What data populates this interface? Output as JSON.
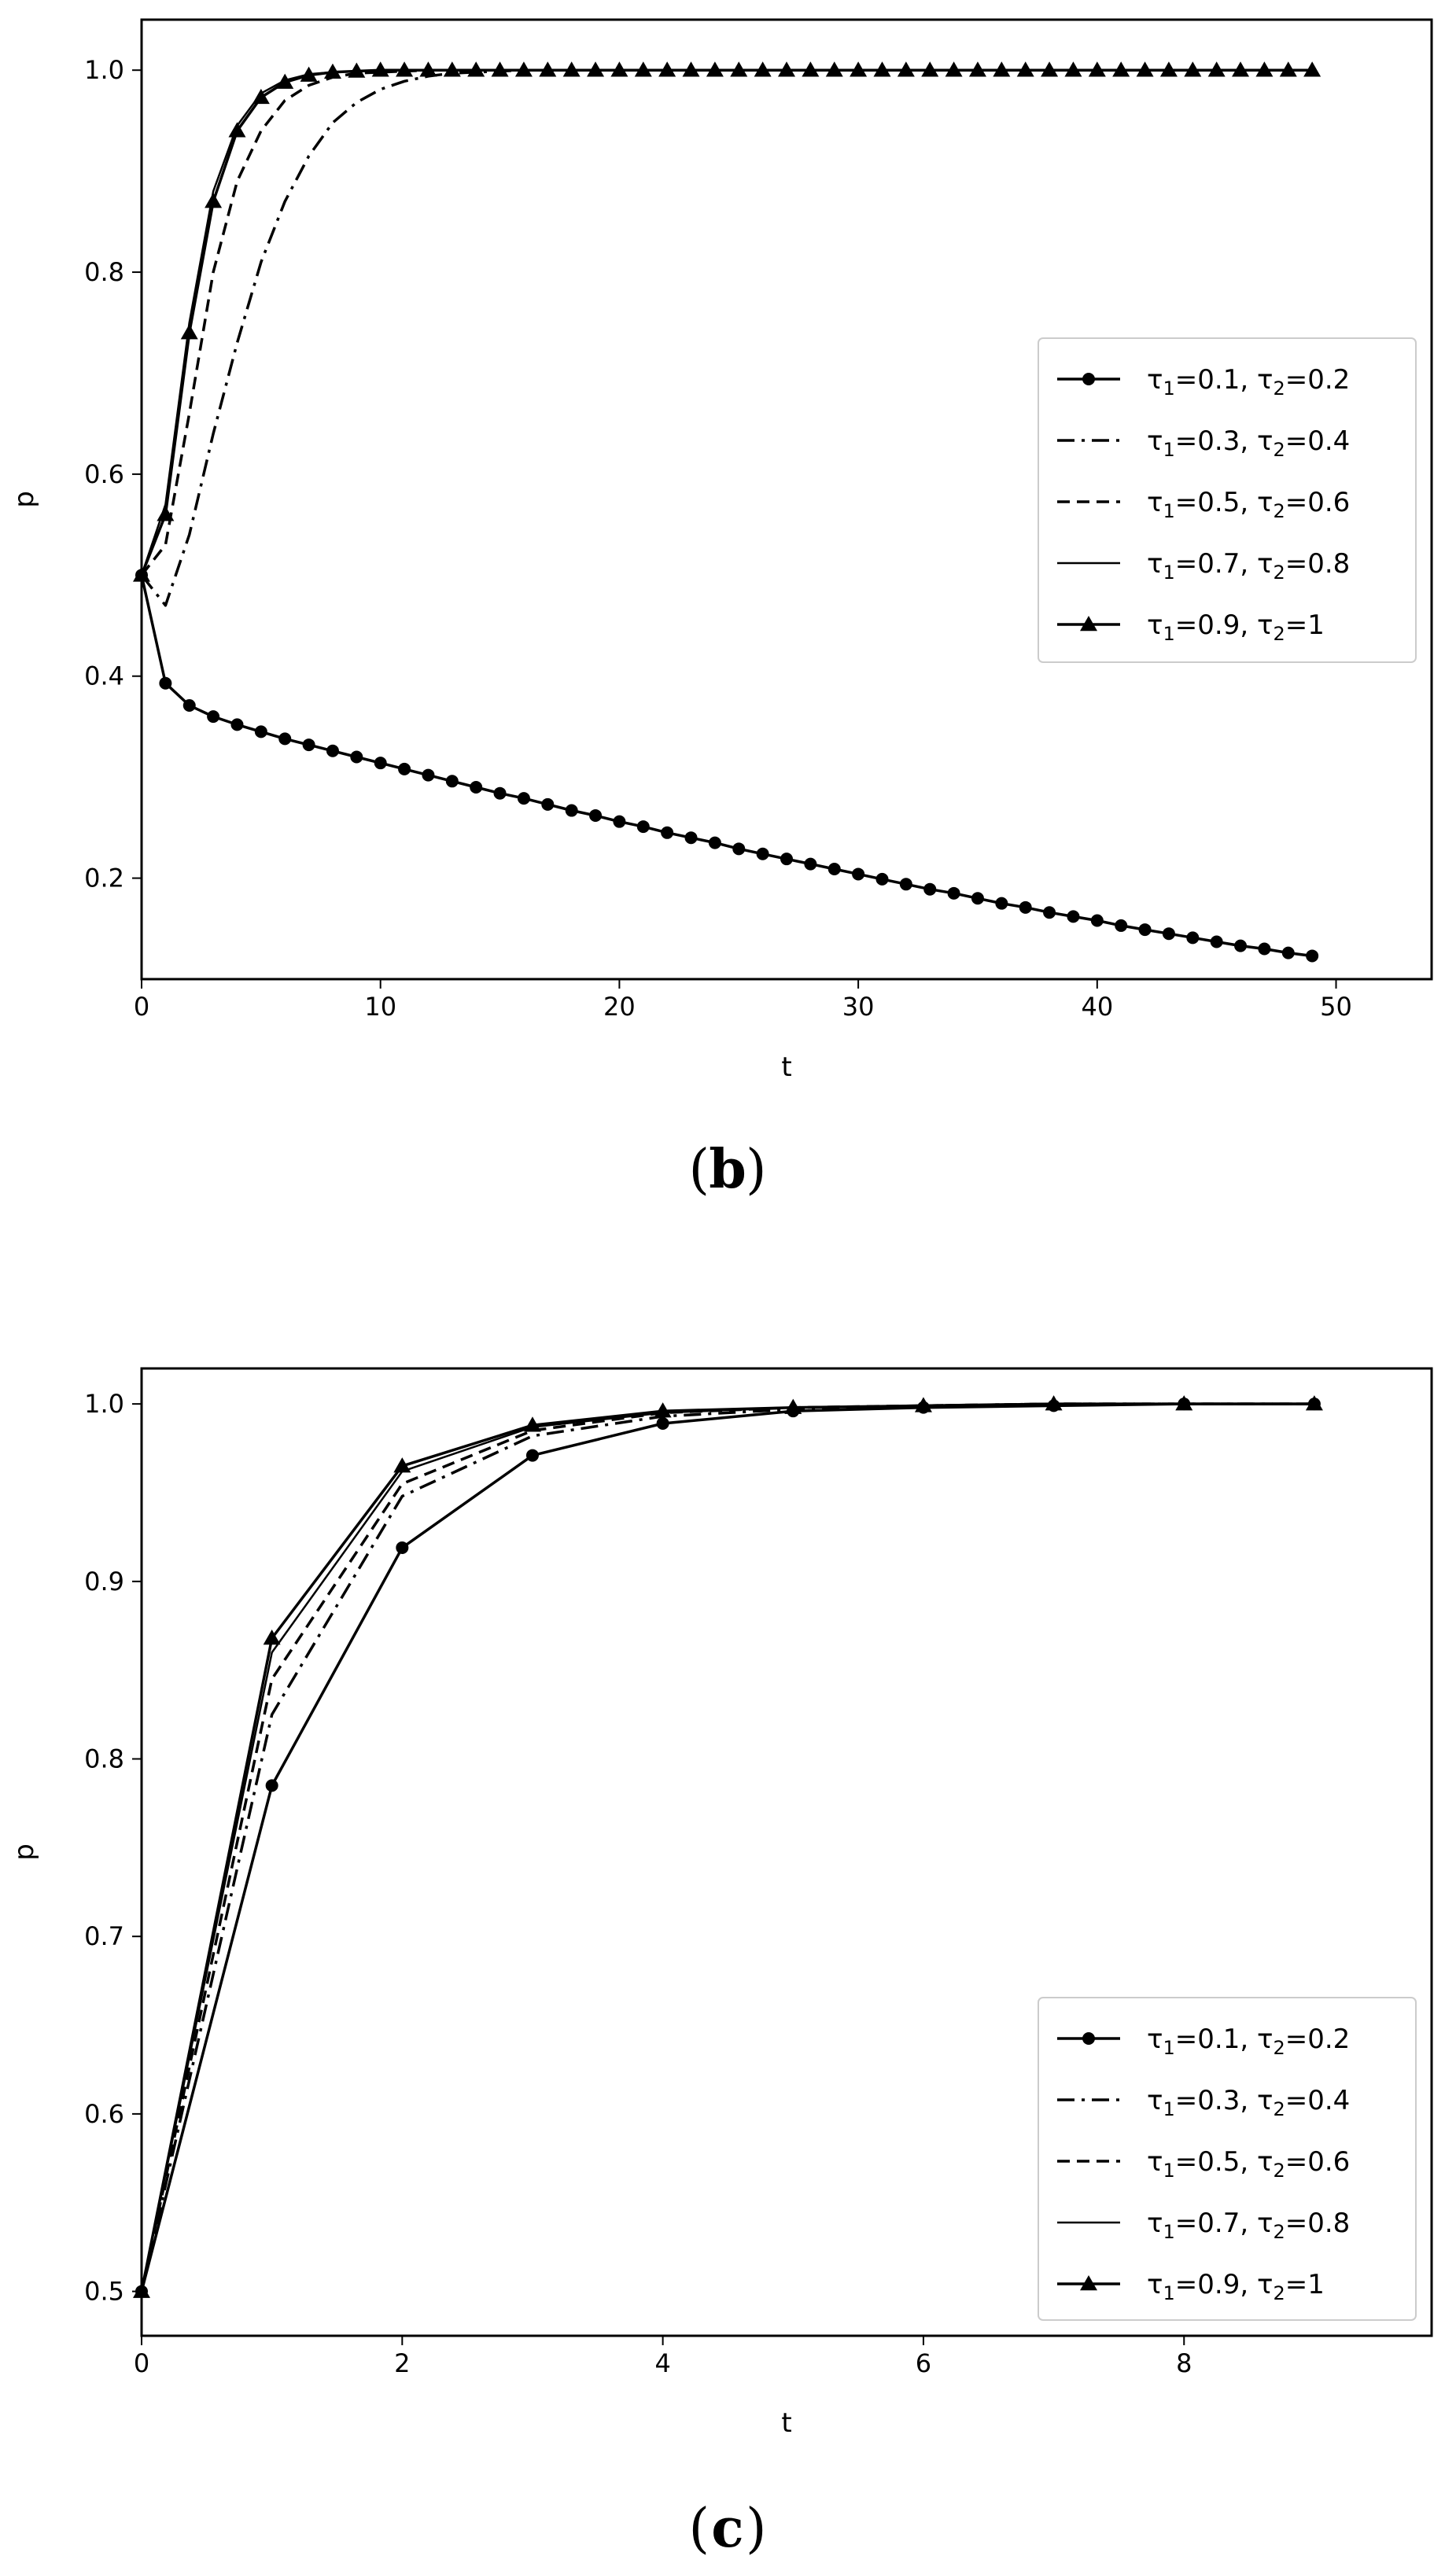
{
  "chart_data": [
    {
      "type": "line",
      "caption": "b",
      "xlabel": "t",
      "ylabel": "p",
      "xlim": [
        0,
        54
      ],
      "ylim": [
        0.1,
        1.05
      ],
      "xticks": [
        0,
        10,
        20,
        30,
        40,
        50
      ],
      "yticks": [
        0.2,
        0.4,
        0.6,
        0.8,
        1.0
      ],
      "xtick_labels": [
        "0",
        "10",
        "20",
        "30",
        "40",
        "50"
      ],
      "ytick_labels": [
        "0.2",
        "0.4",
        "0.6",
        "0.8",
        "1.0"
      ],
      "grid": false,
      "legend_position": "center-right",
      "x": [
        0,
        1,
        2,
        3,
        4,
        5,
        6,
        7,
        8,
        9,
        10,
        11,
        12,
        13,
        14,
        15,
        16,
        17,
        18,
        19,
        20,
        21,
        22,
        23,
        24,
        25,
        26,
        27,
        28,
        29,
        30,
        31,
        32,
        33,
        34,
        35,
        36,
        37,
        38,
        39,
        40,
        41,
        42,
        43,
        44,
        45,
        46,
        47,
        48,
        49
      ],
      "series": [
        {
          "legend": {
            "tau1": "0.1",
            "tau2": "0.2"
          },
          "style": "solid-circle",
          "values": [
            0.5,
            0.393,
            0.371,
            0.36,
            0.352,
            0.345,
            0.338,
            0.332,
            0.326,
            0.32,
            0.314,
            0.308,
            0.302,
            0.296,
            0.29,
            0.284,
            0.279,
            0.273,
            0.267,
            0.262,
            0.256,
            0.251,
            0.245,
            0.24,
            0.235,
            0.229,
            0.224,
            0.219,
            0.214,
            0.209,
            0.204,
            0.199,
            0.194,
            0.189,
            0.185,
            0.18,
            0.175,
            0.171,
            0.166,
            0.162,
            0.158,
            0.153,
            0.149,
            0.145,
            0.141,
            0.137,
            0.133,
            0.13,
            0.126,
            0.123
          ]
        },
        {
          "legend": {
            "tau1": "0.3",
            "tau2": "0.4"
          },
          "style": "dashdot",
          "values": [
            0.5,
            0.47,
            0.54,
            0.64,
            0.73,
            0.81,
            0.87,
            0.915,
            0.948,
            0.968,
            0.981,
            0.989,
            0.994,
            0.997,
            0.998,
            0.999,
            1.0,
            1.0,
            1.0,
            1.0,
            1.0,
            1.0,
            1.0,
            1.0,
            1.0,
            1.0,
            1.0,
            1.0,
            1.0,
            1.0,
            1.0,
            1.0,
            1.0,
            1.0,
            1.0,
            1.0,
            1.0,
            1.0,
            1.0,
            1.0,
            1.0,
            1.0,
            1.0,
            1.0,
            1.0,
            1.0,
            1.0,
            1.0,
            1.0,
            1.0
          ]
        },
        {
          "legend": {
            "tau1": "0.5",
            "tau2": "0.6"
          },
          "style": "dashed",
          "values": [
            0.5,
            0.53,
            0.66,
            0.8,
            0.89,
            0.94,
            0.97,
            0.985,
            0.993,
            0.997,
            0.998,
            0.999,
            1.0,
            1.0,
            1.0,
            1.0,
            1.0,
            1.0,
            1.0,
            1.0,
            1.0,
            1.0,
            1.0,
            1.0,
            1.0,
            1.0,
            1.0,
            1.0,
            1.0,
            1.0,
            1.0,
            1.0,
            1.0,
            1.0,
            1.0,
            1.0,
            1.0,
            1.0,
            1.0,
            1.0,
            1.0,
            1.0,
            1.0,
            1.0,
            1.0,
            1.0,
            1.0,
            1.0,
            1.0,
            1.0
          ]
        },
        {
          "legend": {
            "tau1": "0.7",
            "tau2": "0.8"
          },
          "style": "solid",
          "values": [
            0.5,
            0.57,
            0.75,
            0.88,
            0.945,
            0.977,
            0.99,
            0.996,
            0.998,
            0.999,
            1.0,
            1.0,
            1.0,
            1.0,
            1.0,
            1.0,
            1.0,
            1.0,
            1.0,
            1.0,
            1.0,
            1.0,
            1.0,
            1.0,
            1.0,
            1.0,
            1.0,
            1.0,
            1.0,
            1.0,
            1.0,
            1.0,
            1.0,
            1.0,
            1.0,
            1.0,
            1.0,
            1.0,
            1.0,
            1.0,
            1.0,
            1.0,
            1.0,
            1.0,
            1.0,
            1.0,
            1.0,
            1.0,
            1.0,
            1.0
          ]
        },
        {
          "legend": {
            "tau1": "0.9",
            "tau2": "1"
          },
          "style": "solid-triangle",
          "values": [
            0.5,
            0.56,
            0.74,
            0.87,
            0.94,
            0.973,
            0.988,
            0.995,
            0.998,
            0.999,
            1.0,
            1.0,
            1.0,
            1.0,
            1.0,
            1.0,
            1.0,
            1.0,
            1.0,
            1.0,
            1.0,
            1.0,
            1.0,
            1.0,
            1.0,
            1.0,
            1.0,
            1.0,
            1.0,
            1.0,
            1.0,
            1.0,
            1.0,
            1.0,
            1.0,
            1.0,
            1.0,
            1.0,
            1.0,
            1.0,
            1.0,
            1.0,
            1.0,
            1.0,
            1.0,
            1.0,
            1.0,
            1.0,
            1.0,
            1.0
          ]
        }
      ]
    },
    {
      "type": "line",
      "caption": "c",
      "xlabel": "t",
      "ylabel": "p",
      "xlim": [
        0,
        9.9
      ],
      "ylim": [
        0.475,
        1.02
      ],
      "xticks": [
        0,
        2,
        4,
        6,
        8
      ],
      "yticks": [
        0.5,
        0.6,
        0.7,
        0.8,
        0.9,
        1.0
      ],
      "xtick_labels": [
        "0",
        "2",
        "4",
        "6",
        "8"
      ],
      "ytick_labels": [
        "0.5",
        "0.6",
        "0.7",
        "0.8",
        "0.9",
        "1.0"
      ],
      "grid": false,
      "legend_position": "lower-right",
      "x": [
        0,
        1,
        2,
        3,
        4,
        5,
        6,
        7,
        8,
        9
      ],
      "series": [
        {
          "legend": {
            "tau1": "0.1",
            "tau2": "0.2"
          },
          "style": "solid-circle",
          "values": [
            0.5,
            0.785,
            0.919,
            0.971,
            0.989,
            0.996,
            0.998,
            0.999,
            1.0,
            1.0
          ]
        },
        {
          "legend": {
            "tau1": "0.3",
            "tau2": "0.4"
          },
          "style": "dashdot",
          "values": [
            0.5,
            0.825,
            0.948,
            0.982,
            0.993,
            0.997,
            0.999,
            1.0,
            1.0,
            1.0
          ]
        },
        {
          "legend": {
            "tau1": "0.5",
            "tau2": "0.6"
          },
          "style": "dashed",
          "values": [
            0.5,
            0.845,
            0.955,
            0.985,
            0.995,
            0.998,
            0.999,
            1.0,
            1.0,
            1.0
          ]
        },
        {
          "legend": {
            "tau1": "0.7",
            "tau2": "0.8"
          },
          "style": "solid",
          "values": [
            0.5,
            0.86,
            0.962,
            0.987,
            0.995,
            0.998,
            0.999,
            1.0,
            1.0,
            1.0
          ]
        },
        {
          "legend": {
            "tau1": "0.9",
            "tau2": "1"
          },
          "style": "solid-triangle",
          "values": [
            0.5,
            0.868,
            0.965,
            0.988,
            0.996,
            0.998,
            0.999,
            1.0,
            1.0,
            1.0
          ]
        }
      ]
    }
  ]
}
